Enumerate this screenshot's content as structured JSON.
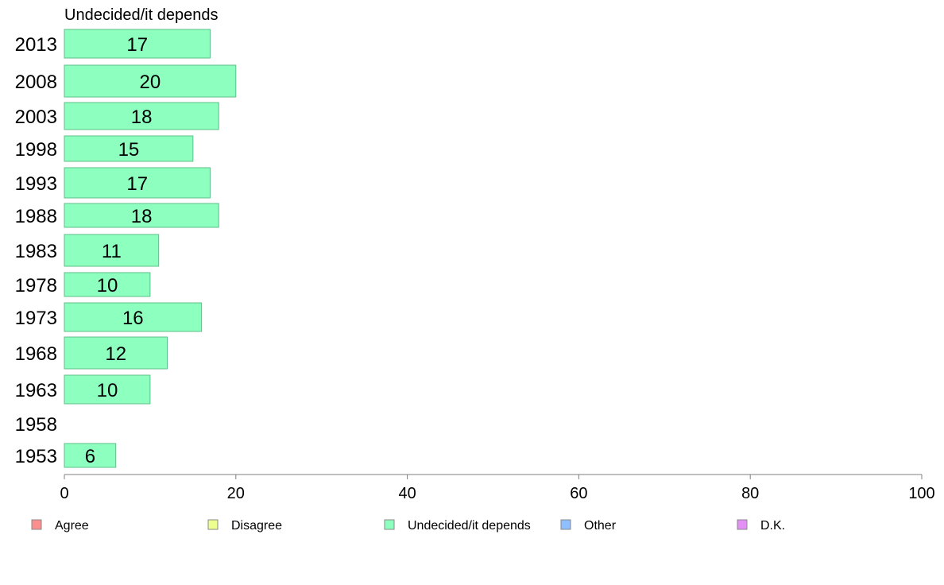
{
  "chart_data": {
    "type": "bar",
    "orientation": "horizontal",
    "title": "Undecided/it depends",
    "categories": [
      "2013",
      "2008",
      "2003",
      "1998",
      "1993",
      "1988",
      "1983",
      "1978",
      "1973",
      "1968",
      "1963",
      "1958",
      "1953"
    ],
    "values": [
      17,
      20,
      18,
      15,
      17,
      18,
      11,
      10,
      16,
      12,
      10,
      null,
      6
    ],
    "value_labels": [
      "17",
      "20",
      "18",
      "15",
      "17",
      "18",
      "11",
      "10",
      "16",
      "12",
      "10",
      "",
      "6"
    ],
    "xlim": [
      0,
      100
    ],
    "xticks": [
      "0",
      "20",
      "40",
      "60",
      "80",
      "100"
    ],
    "bar_color": "#8dffbe",
    "bar_edge_color": "#5fbf8a",
    "grid": false,
    "legend_position": "bottom",
    "legend": [
      {
        "label": "Agree",
        "color": "#fb8f8f"
      },
      {
        "label": "Disagree",
        "color": "#ecff8f"
      },
      {
        "label": "Undecided/it depends",
        "color": "#8dffbe"
      },
      {
        "label": "Other",
        "color": "#8fbfff"
      },
      {
        "label": "D.K.",
        "color": "#e38ff5"
      }
    ]
  }
}
